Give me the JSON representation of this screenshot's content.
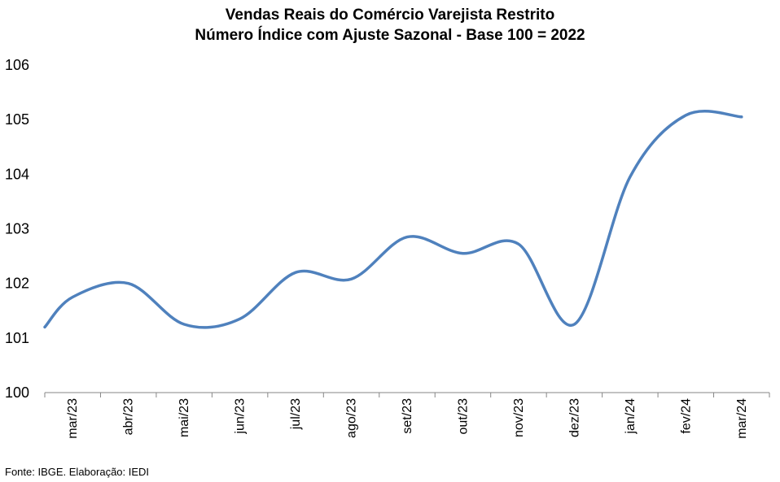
{
  "chart_data": {
    "type": "line",
    "title": "Vendas Reais do Comércio Varejista Restrito",
    "subtitle": "Número Índice com Ajuste Sazonal - Base 100 = 2022",
    "categories": [
      "mar/23",
      "abr/23",
      "mai/23",
      "jun/23",
      "jul/23",
      "ago/23",
      "set/23",
      "out/23",
      "nov/23",
      "dez/23",
      "jan/24",
      "fev/24",
      "mar/24"
    ],
    "series": [
      {
        "values": [
          101.75,
          102.0,
          101.25,
          101.35,
          102.2,
          102.08,
          102.85,
          102.55,
          102.72,
          101.25,
          103.95,
          105.08,
          105.05
        ]
      }
    ],
    "y_start": 101.2,
    "ylim": [
      100,
      106
    ],
    "yticks": [
      100,
      101,
      102,
      103,
      104,
      105,
      106
    ],
    "grid": false,
    "legend": "none",
    "line_color": "#4f81bd"
  },
  "source": "Fonte: IBGE. Elaboração: IEDI"
}
